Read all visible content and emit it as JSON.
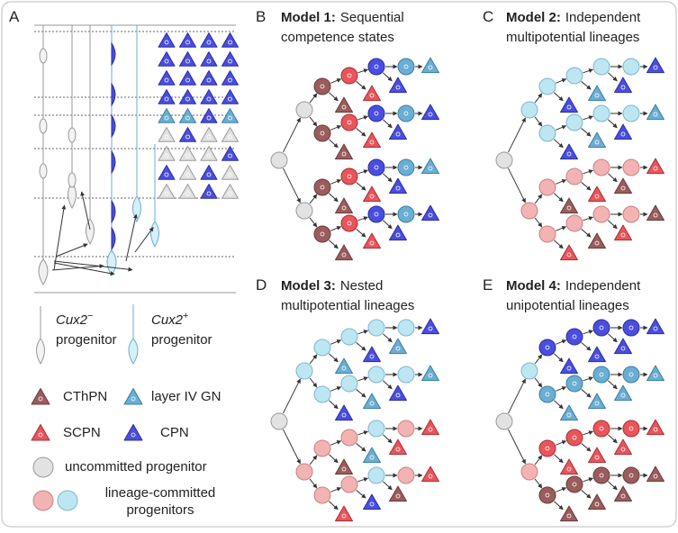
{
  "panel_labels": [
    "A",
    "B",
    "C",
    "D",
    "E"
  ],
  "models": [
    {
      "name": "Model 1:",
      "line1": "Sequential",
      "line2": "competence states"
    },
    {
      "name": "Model 2:",
      "line1": "Independent",
      "line2": "multipotential lineages"
    },
    {
      "name": "Model 3:",
      "line1": "Nested",
      "line2": "multipotential lineages"
    },
    {
      "name": "Model 4:",
      "line1": "Independent",
      "line2": "unipotential lineages"
    }
  ],
  "legend": {
    "cux2_neg": {
      "gene": "Cux2",
      "sup": "−",
      "label": "progenitor"
    },
    "cux2_pos": {
      "gene": "Cux2",
      "sup": "+",
      "label": "progenitor"
    },
    "cthpn": "CThPN",
    "layer4": "layer IV GN",
    "scpn": "SCPN",
    "cpn": "CPN",
    "uncommitted": "uncommitted progenitor",
    "committed": [
      "lineage-committed",
      "progenitors"
    ]
  }
}
